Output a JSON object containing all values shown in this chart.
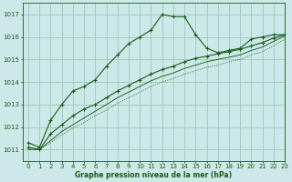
{
  "title": "Graphe pression niveau de la mer (hPa)",
  "bg_color": "#cce8e8",
  "grid_color": "#99ccbb",
  "line_color": "#1a5c1a",
  "xlim": [
    -0.5,
    23
  ],
  "ylim": [
    1010.5,
    1017.5
  ],
  "yticks": [
    1011,
    1012,
    1013,
    1014,
    1015,
    1016,
    1017
  ],
  "xticks": [
    0,
    1,
    2,
    3,
    4,
    5,
    6,
    7,
    8,
    9,
    10,
    11,
    12,
    13,
    14,
    15,
    16,
    17,
    18,
    19,
    20,
    21,
    22,
    23
  ],
  "series1_x": [
    0,
    1,
    2,
    3,
    4,
    5,
    6,
    7,
    8,
    9,
    10,
    11,
    12,
    13,
    14,
    15,
    16,
    17,
    18,
    19,
    20,
    21,
    22,
    23
  ],
  "series1_y": [
    1011.3,
    1011.1,
    1012.3,
    1013.0,
    1013.6,
    1013.8,
    1014.1,
    1014.7,
    1015.2,
    1015.7,
    1016.0,
    1016.3,
    1017.0,
    1016.9,
    1016.9,
    1016.1,
    1015.5,
    1015.3,
    1015.4,
    1015.5,
    1015.9,
    1016.0,
    1016.1,
    1016.1
  ],
  "series2_x": [
    0,
    1,
    2,
    3,
    4,
    5,
    6,
    7,
    8,
    9,
    10,
    11,
    12,
    13,
    14,
    15,
    16,
    17,
    18,
    19,
    20,
    21,
    22,
    23
  ],
  "series2_y": [
    1011.1,
    1011.0,
    1011.7,
    1012.1,
    1012.5,
    1012.8,
    1013.0,
    1013.3,
    1013.6,
    1013.85,
    1014.1,
    1014.35,
    1014.55,
    1014.7,
    1014.9,
    1015.05,
    1015.15,
    1015.25,
    1015.35,
    1015.45,
    1015.6,
    1015.75,
    1015.95,
    1016.1
  ],
  "series3_x": [
    0,
    1,
    2,
    3,
    4,
    5,
    6,
    7,
    8,
    9,
    10,
    11,
    12,
    13,
    14,
    15,
    16,
    17,
    18,
    19,
    20,
    21,
    22,
    23
  ],
  "series3_y": [
    1011.0,
    1011.0,
    1011.4,
    1011.8,
    1012.1,
    1012.4,
    1012.7,
    1013.0,
    1013.3,
    1013.55,
    1013.8,
    1014.05,
    1014.25,
    1014.4,
    1014.6,
    1014.75,
    1014.9,
    1015.0,
    1015.1,
    1015.2,
    1015.4,
    1015.55,
    1015.8,
    1016.05
  ],
  "series4_x": [
    0,
    1,
    2,
    3,
    4,
    5,
    6,
    7,
    8,
    9,
    10,
    11,
    12,
    13,
    14,
    15,
    16,
    17,
    18,
    19,
    20,
    21,
    22,
    23
  ],
  "series4_y": [
    1011.0,
    1011.0,
    1011.3,
    1011.65,
    1011.95,
    1012.2,
    1012.5,
    1012.75,
    1013.05,
    1013.3,
    1013.55,
    1013.8,
    1014.0,
    1014.15,
    1014.35,
    1014.5,
    1014.65,
    1014.75,
    1014.9,
    1015.0,
    1015.2,
    1015.35,
    1015.6,
    1015.9
  ]
}
